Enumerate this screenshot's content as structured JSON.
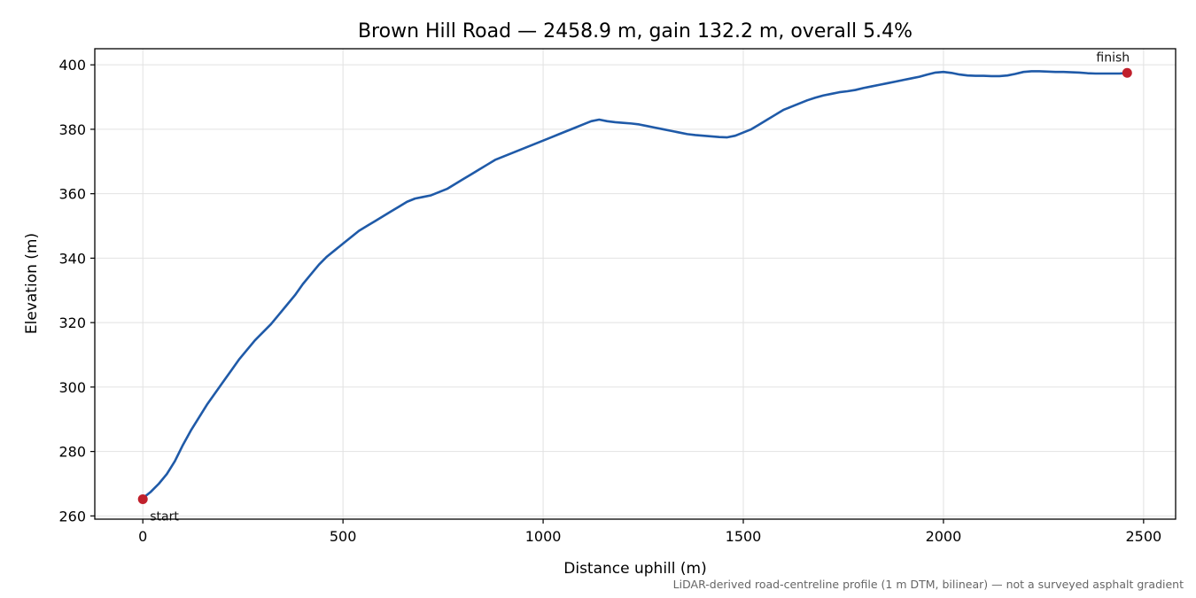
{
  "chart_data": {
    "type": "line",
    "title": "Brown Hill Road — 2458.9 m, gain 132.2 m, overall 5.4%",
    "xlabel": "Distance uphill (m)",
    "ylabel": "Elevation (m)",
    "xlim": [
      -120,
      2580
    ],
    "ylim": [
      259,
      405
    ],
    "xticks": [
      0,
      500,
      1000,
      1500,
      2000,
      2500
    ],
    "yticks": [
      260,
      280,
      300,
      320,
      340,
      360,
      380,
      400
    ],
    "grid": true,
    "line_color": "#1f5aa8",
    "marker_color": "#c0202c",
    "series": [
      {
        "x": [
          0,
          20,
          40,
          60,
          80,
          100,
          120,
          140,
          160,
          180,
          200,
          220,
          240,
          260,
          280,
          300,
          320,
          340,
          360,
          380,
          400,
          420,
          440,
          460,
          480,
          500,
          520,
          540,
          560,
          580,
          600,
          620,
          640,
          660,
          680,
          700,
          720,
          740,
          760,
          780,
          800,
          820,
          840,
          860,
          880,
          900,
          920,
          940,
          960,
          980,
          1000,
          1020,
          1040,
          1060,
          1080,
          1100,
          1120,
          1140,
          1160,
          1180,
          1200,
          1220,
          1240,
          1260,
          1280,
          1300,
          1320,
          1340,
          1360,
          1380,
          1400,
          1420,
          1440,
          1460,
          1480,
          1500,
          1520,
          1540,
          1560,
          1580,
          1600,
          1620,
          1640,
          1660,
          1680,
          1700,
          1720,
          1740,
          1760,
          1780,
          1800,
          1820,
          1840,
          1860,
          1880,
          1900,
          1920,
          1940,
          1960,
          1980,
          2000,
          2020,
          2040,
          2060,
          2080,
          2100,
          2120,
          2140,
          2160,
          2180,
          2200,
          2220,
          2240,
          2260,
          2280,
          2300,
          2320,
          2340,
          2360,
          2380,
          2400,
          2420,
          2440,
          2458.9
        ],
        "y": [
          265.5,
          267.5,
          270.0,
          273.0,
          277.0,
          282.0,
          286.5,
          290.5,
          294.5,
          298.0,
          301.5,
          305.0,
          308.5,
          311.5,
          314.5,
          317.0,
          319.5,
          322.5,
          325.5,
          328.5,
          332.0,
          335.0,
          338.0,
          340.5,
          342.5,
          344.5,
          346.5,
          348.5,
          350.0,
          351.5,
          353.0,
          354.5,
          356.0,
          357.5,
          358.5,
          359.0,
          359.5,
          360.5,
          361.5,
          363.0,
          364.5,
          366.0,
          367.5,
          369.0,
          370.5,
          371.5,
          372.5,
          373.5,
          374.5,
          375.5,
          376.5,
          377.5,
          378.5,
          379.5,
          380.5,
          381.5,
          382.5,
          383.0,
          382.5,
          382.2,
          382.0,
          381.8,
          381.5,
          381.0,
          380.5,
          380.0,
          379.5,
          379.0,
          378.5,
          378.2,
          378.0,
          377.8,
          377.6,
          377.5,
          378.0,
          379.0,
          380.0,
          381.5,
          383.0,
          384.5,
          386.0,
          387.0,
          388.0,
          389.0,
          389.8,
          390.5,
          391.0,
          391.5,
          391.8,
          392.2,
          392.8,
          393.3,
          393.8,
          394.3,
          394.8,
          395.3,
          395.8,
          396.3,
          397.0,
          397.6,
          397.8,
          397.5,
          397.0,
          396.7,
          396.6,
          396.6,
          396.5,
          396.5,
          396.7,
          397.2,
          397.8,
          398.0,
          398.0,
          397.9,
          397.8,
          397.8,
          397.7,
          397.6,
          397.4,
          397.3,
          397.3,
          397.3,
          397.3,
          397.5
        ]
      }
    ],
    "annotations": [
      {
        "text": "start",
        "x": 0,
        "y": 265.2
      },
      {
        "text": "finish",
        "x": 2458.9,
        "y": 397.5
      }
    ],
    "footnote": "LiDAR-derived road-centreline profile (1 m DTM, bilinear) — not a surveyed asphalt gradient"
  }
}
